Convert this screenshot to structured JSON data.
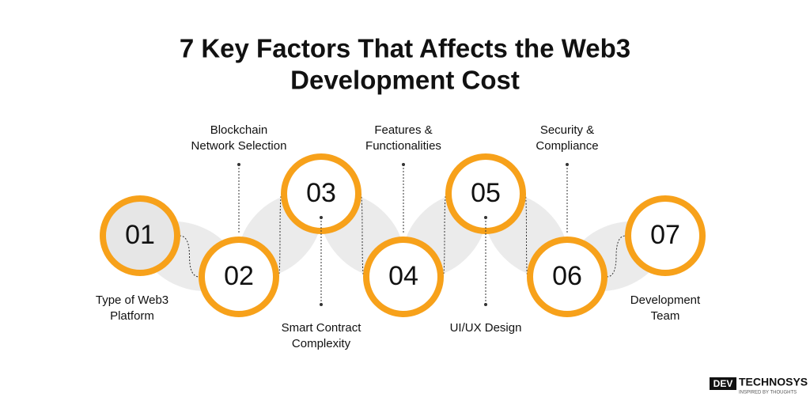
{
  "header": {
    "title": [
      "7 Key Factors That  Affects the Web3",
      "Development Cost"
    ]
  },
  "steps": [
    {
      "number": "01",
      "label": [
        "Type of Web3",
        "Platform"
      ]
    },
    {
      "number": "02",
      "label": [
        "Blockchain",
        "Network Selection"
      ]
    },
    {
      "number": "03",
      "label": [
        "Smart Contract",
        "Complexity"
      ]
    },
    {
      "number": "04",
      "label": [
        "Features &",
        "Functionalities"
      ]
    },
    {
      "number": "05",
      "label": [
        "UI/UX Design"
      ]
    },
    {
      "number": "06",
      "label": [
        "Security &",
        "Compliance"
      ]
    },
    {
      "number": "07",
      "label": [
        "Development",
        "Team"
      ]
    }
  ],
  "logo": {
    "mark": "DEV",
    "name": "TECHNOSYS",
    "tagline": "INSPIRED BY THOUGHTS"
  }
}
